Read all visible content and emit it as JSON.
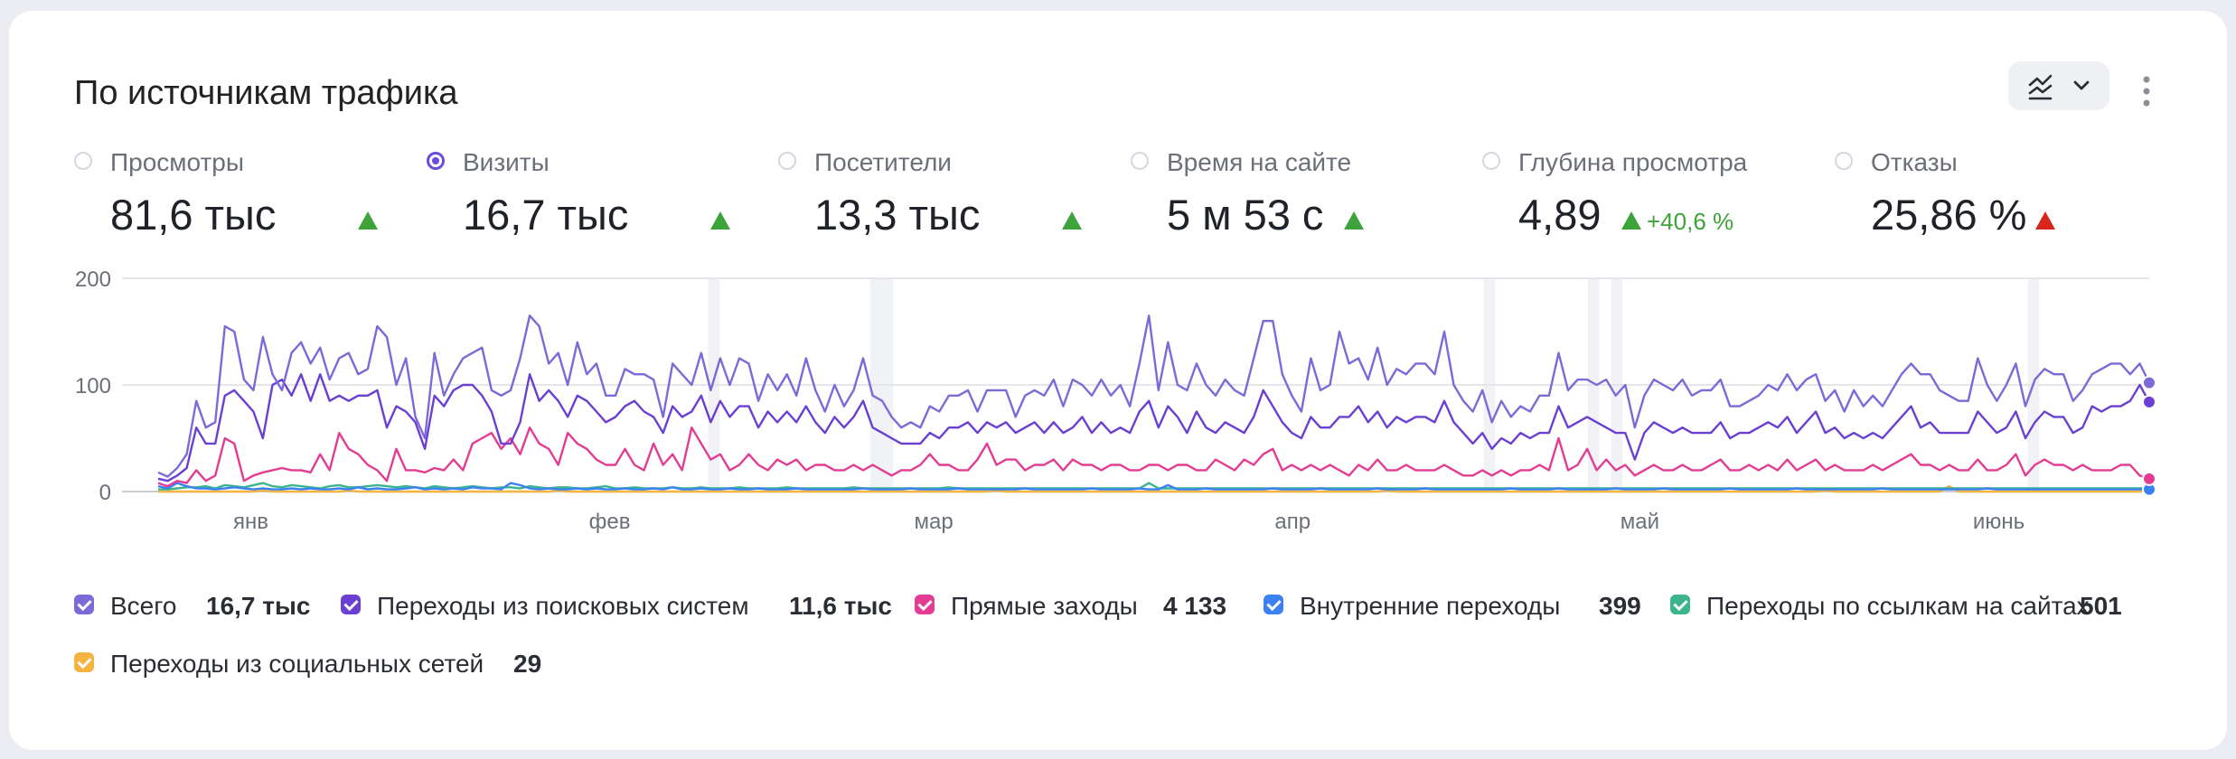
{
  "widget": {
    "title": "По источникам трафика"
  },
  "metrics": [
    {
      "label": "Просмотры",
      "value": "81,6 тыс",
      "selected": false,
      "trend": "up"
    },
    {
      "label": "Визиты",
      "value": "16,7 тыс",
      "selected": true,
      "trend": "up"
    },
    {
      "label": "Посетители",
      "value": "13,3 тыс",
      "selected": false,
      "trend": "up"
    },
    {
      "label": "Время на сайте",
      "value": "5 м 53 с",
      "selected": false,
      "trend": "up"
    },
    {
      "label": "Глубина просмотра",
      "value": "4,89",
      "selected": false,
      "trend": "up",
      "delta": "+40,6 %"
    },
    {
      "label": "Отказы",
      "value": "25,86 %",
      "selected": false,
      "trend": "up-bad"
    }
  ],
  "colors": {
    "total": "#7b6ad8",
    "search": "#6a3fd2",
    "direct": "#e23d93",
    "internal": "#3b82f0",
    "links": "#3cb58c",
    "social": "#f5b441",
    "trend_up": "#3ea33a",
    "trend_bad": "#d9261c"
  },
  "icons": {
    "view_selector": "chart-lines-icon",
    "dropdown": "chevron-down-icon",
    "more": "more-vertical-icon"
  },
  "chart_data": {
    "type": "line",
    "x_start": "2024-12-28",
    "x_end": "2025-06-18",
    "xticks": [
      {
        "date": "2025-01-05",
        "label": "янв"
      },
      {
        "date": "2025-02-05",
        "label": "фев"
      },
      {
        "date": "2025-03-05",
        "label": "мар"
      },
      {
        "date": "2025-04-05",
        "label": "апр"
      },
      {
        "date": "2025-05-05",
        "label": "май"
      },
      {
        "date": "2025-06-05",
        "label": "июнь"
      }
    ],
    "yticks": [
      "0",
      "100",
      "200"
    ],
    "ylim": [
      0,
      200
    ],
    "grid": true,
    "highlight_dates": [
      "2025-02-14",
      "2025-02-28",
      "2025-03-01",
      "2025-04-22",
      "2025-05-01",
      "2025-05-03",
      "2025-06-08"
    ],
    "series": [
      {
        "name": "Всего",
        "key": "total",
        "total": "16,7 тыс",
        "values": [
          18,
          14,
          22,
          35,
          85,
          60,
          65,
          155,
          150,
          105,
          95,
          145,
          110,
          95,
          130,
          140,
          120,
          135,
          105,
          125,
          130,
          110,
          115,
          155,
          145,
          100,
          125,
          70,
          50,
          130,
          90,
          110,
          125,
          130,
          135,
          95,
          90,
          95,
          125,
          165,
          155,
          120,
          130,
          100,
          140,
          110,
          120,
          90,
          90,
          115,
          110,
          110,
          105,
          70,
          120,
          110,
          100,
          130,
          95,
          125,
          100,
          125,
          120,
          85,
          110,
          95,
          110,
          90,
          125,
          95,
          75,
          100,
          80,
          95,
          125,
          90,
          85,
          70,
          60,
          65,
          60,
          80,
          75,
          90,
          90,
          95,
          75,
          95,
          95,
          95,
          70,
          90,
          95,
          90,
          105,
          80,
          105,
          100,
          90,
          105,
          90,
          100,
          80,
          120,
          165,
          95,
          140,
          100,
          95,
          120,
          100,
          90,
          105,
          95,
          90,
          125,
          160,
          160,
          110,
          90,
          75,
          125,
          95,
          100,
          150,
          120,
          125,
          105,
          135,
          100,
          115,
          110,
          120,
          120,
          110,
          150,
          100,
          85,
          75,
          95,
          65,
          85,
          70,
          80,
          75,
          90,
          90,
          130,
          95,
          105,
          105,
          100,
          105,
          90,
          100,
          60,
          90,
          105,
          100,
          95,
          105,
          90,
          95,
          95,
          105,
          80,
          80,
          85,
          90,
          100,
          95,
          110,
          95,
          105,
          110,
          85,
          95,
          75,
          95,
          80,
          90,
          80,
          95,
          110,
          120,
          110,
          110,
          95,
          90,
          85,
          85,
          125,
          100,
          85,
          100,
          120,
          80,
          105,
          115,
          110,
          110,
          85,
          95,
          110,
          115,
          120,
          120,
          110,
          120,
          102
        ]
      },
      {
        "name": "Переходы из поисковых систем",
        "key": "search",
        "total": "11,6 тыс",
        "values": [
          12,
          10,
          15,
          22,
          60,
          45,
          45,
          90,
          95,
          85,
          75,
          50,
          100,
          105,
          90,
          110,
          85,
          110,
          85,
          90,
          85,
          90,
          90,
          95,
          60,
          80,
          75,
          65,
          40,
          90,
          80,
          95,
          100,
          100,
          90,
          75,
          45,
          45,
          65,
          110,
          85,
          95,
          85,
          70,
          90,
          85,
          75,
          65,
          70,
          80,
          85,
          75,
          70,
          55,
          80,
          70,
          75,
          90,
          65,
          85,
          70,
          80,
          80,
          60,
          75,
          65,
          75,
          65,
          80,
          65,
          55,
          70,
          60,
          70,
          85,
          60,
          55,
          50,
          45,
          45,
          45,
          55,
          50,
          60,
          60,
          65,
          55,
          65,
          60,
          65,
          55,
          60,
          65,
          55,
          65,
          55,
          60,
          70,
          55,
          65,
          55,
          60,
          55,
          75,
          85,
          60,
          80,
          70,
          55,
          75,
          60,
          55,
          65,
          60,
          55,
          70,
          95,
          80,
          65,
          55,
          50,
          70,
          60,
          60,
          70,
          70,
          80,
          65,
          75,
          60,
          70,
          65,
          70,
          70,
          65,
          85,
          65,
          55,
          45,
          55,
          40,
          50,
          45,
          55,
          50,
          55,
          55,
          80,
          60,
          65,
          70,
          65,
          60,
          55,
          55,
          30,
          55,
          65,
          60,
          55,
          60,
          55,
          55,
          55,
          65,
          50,
          55,
          55,
          60,
          65,
          60,
          70,
          55,
          65,
          75,
          55,
          60,
          50,
          55,
          50,
          55,
          50,
          60,
          70,
          80,
          60,
          65,
          55,
          55,
          55,
          55,
          75,
          65,
          55,
          60,
          75,
          50,
          65,
          75,
          70,
          70,
          55,
          60,
          80,
          75,
          80,
          80,
          85,
          100,
          84
        ]
      },
      {
        "name": "Прямые заходы",
        "key": "direct",
        "total": "4 133",
        "values": [
          8,
          5,
          10,
          8,
          20,
          10,
          15,
          50,
          45,
          10,
          15,
          18,
          20,
          22,
          20,
          20,
          18,
          35,
          20,
          55,
          40,
          35,
          25,
          20,
          10,
          40,
          20,
          20,
          18,
          22,
          20,
          30,
          20,
          45,
          50,
          55,
          40,
          50,
          35,
          60,
          45,
          40,
          25,
          55,
          45,
          40,
          30,
          25,
          25,
          40,
          25,
          20,
          45,
          25,
          35,
          20,
          60,
          45,
          30,
          35,
          20,
          25,
          35,
          25,
          20,
          30,
          25,
          30,
          20,
          25,
          25,
          20,
          20,
          25,
          20,
          25,
          20,
          15,
          20,
          20,
          25,
          35,
          25,
          25,
          20,
          20,
          30,
          45,
          25,
          30,
          30,
          20,
          25,
          25,
          30,
          20,
          30,
          25,
          25,
          20,
          25,
          25,
          20,
          20,
          25,
          25,
          20,
          25,
          25,
          20,
          20,
          30,
          25,
          20,
          30,
          25,
          35,
          40,
          20,
          25,
          20,
          25,
          20,
          25,
          20,
          15,
          25,
          20,
          30,
          20,
          20,
          25,
          20,
          20,
          20,
          25,
          20,
          15,
          15,
          20,
          15,
          20,
          15,
          20,
          20,
          25,
          20,
          50,
          20,
          25,
          40,
          20,
          30,
          20,
          25,
          15,
          20,
          25,
          20,
          20,
          25,
          20,
          20,
          25,
          30,
          20,
          20,
          25,
          20,
          25,
          20,
          30,
          20,
          25,
          30,
          20,
          25,
          20,
          20,
          20,
          25,
          20,
          25,
          30,
          35,
          25,
          25,
          20,
          25,
          20,
          20,
          30,
          20,
          20,
          25,
          35,
          15,
          25,
          30,
          25,
          25,
          20,
          25,
          20,
          20,
          20,
          25,
          25,
          15,
          12
        ]
      },
      {
        "name": "Внутренние переходы",
        "key": "internal",
        "total": "399",
        "values": [
          5,
          3,
          8,
          5,
          3,
          3,
          2,
          3,
          4,
          3,
          2,
          3,
          2,
          2,
          3,
          2,
          3,
          2,
          2,
          3,
          2,
          4,
          2,
          3,
          2,
          2,
          3,
          4,
          2,
          3,
          2,
          3,
          2,
          4,
          3,
          3,
          2,
          8,
          6,
          3,
          2,
          3,
          2,
          2,
          3,
          2,
          3,
          2,
          2,
          3,
          2,
          2,
          3,
          2,
          4,
          2,
          2,
          3,
          2,
          2,
          3,
          2,
          2,
          3,
          2,
          2,
          2,
          3,
          2,
          2,
          2,
          2,
          2,
          2,
          3,
          2,
          2,
          2,
          2,
          3,
          2,
          2,
          2,
          2,
          3,
          2,
          2,
          2,
          2,
          2,
          2,
          3,
          2,
          2,
          2,
          2,
          2,
          2,
          3,
          2,
          2,
          2,
          2,
          3,
          2,
          2,
          6,
          2,
          2,
          2,
          3,
          2,
          2,
          2,
          2,
          2,
          2,
          3,
          2,
          2,
          2,
          2,
          3,
          2,
          2,
          2,
          2,
          2,
          3,
          2,
          2,
          2,
          2,
          3,
          2,
          2,
          2,
          2,
          2,
          2,
          2,
          2,
          3,
          2,
          2,
          2,
          2,
          3,
          2,
          2,
          2,
          2,
          2,
          3,
          2,
          2,
          2,
          2,
          3,
          2,
          2,
          2,
          2,
          2,
          2,
          3,
          2,
          2,
          2,
          2,
          2,
          2,
          3,
          2,
          2,
          2,
          2,
          2,
          2,
          2,
          2,
          3,
          2,
          2,
          2,
          2,
          2,
          2,
          2,
          2,
          2,
          2,
          3,
          2,
          2,
          2,
          2,
          2,
          2,
          2,
          2,
          2,
          2,
          2,
          2,
          2,
          2,
          2,
          2,
          2
        ]
      },
      {
        "name": "Переходы по ссылкам на сайтах",
        "key": "links",
        "total": "501",
        "values": [
          2,
          2,
          3,
          4,
          4,
          5,
          3,
          6,
          5,
          4,
          6,
          8,
          5,
          4,
          6,
          5,
          4,
          3,
          5,
          6,
          4,
          4,
          5,
          6,
          5,
          4,
          5,
          4,
          3,
          5,
          4,
          3,
          4,
          5,
          4,
          3,
          4,
          4,
          3,
          5,
          4,
          3,
          4,
          4,
          3,
          3,
          4,
          5,
          3,
          3,
          4,
          3,
          3,
          3,
          4,
          3,
          3,
          4,
          3,
          3,
          3,
          4,
          3,
          3,
          3,
          3,
          4,
          3,
          3,
          3,
          3,
          3,
          3,
          4,
          3,
          3,
          3,
          3,
          3,
          3,
          3,
          3,
          3,
          4,
          3,
          3,
          3,
          3,
          3,
          3,
          3,
          3,
          3,
          3,
          3,
          3,
          3,
          3,
          3,
          3,
          3,
          3,
          3,
          3,
          8,
          3,
          3,
          3,
          3,
          3,
          3,
          3,
          3,
          3,
          3,
          3,
          3,
          3,
          3,
          3,
          3,
          3,
          3,
          3,
          3,
          3,
          3,
          3,
          3,
          3,
          3,
          3,
          3,
          3,
          3,
          3,
          3,
          3,
          3,
          3,
          3,
          3,
          3,
          3,
          3,
          3,
          3,
          3,
          3,
          3,
          3,
          3,
          3,
          3,
          3,
          3,
          3,
          3,
          3,
          3,
          3,
          3,
          3,
          3,
          3,
          3,
          3,
          3,
          3,
          3,
          3,
          3,
          3,
          3,
          3,
          3,
          3,
          3,
          3,
          3,
          3,
          3,
          3,
          3,
          3,
          3,
          3,
          3,
          3,
          3,
          3,
          3,
          3,
          3,
          3,
          3,
          3,
          3,
          3,
          3,
          3,
          3,
          3,
          3,
          3,
          3,
          3,
          3,
          3,
          4
        ]
      },
      {
        "name": "Переходы из социальных сетей",
        "key": "social",
        "total": "29",
        "values": [
          0,
          0,
          0,
          0,
          0,
          0,
          0,
          0,
          0,
          0,
          0,
          1,
          0,
          0,
          0,
          0,
          0,
          0,
          0,
          0,
          1,
          0,
          0,
          0,
          0,
          0,
          0,
          0,
          0,
          0,
          0,
          0,
          0,
          0,
          0,
          0,
          0,
          0,
          0,
          0,
          0,
          0,
          1,
          0,
          0,
          0,
          0,
          0,
          0,
          0,
          0,
          0,
          0,
          0,
          0,
          0,
          0,
          0,
          0,
          0,
          0,
          0,
          0,
          0,
          0,
          0,
          0,
          0,
          0,
          0,
          0,
          0,
          0,
          0,
          0,
          0,
          0,
          0,
          0,
          0,
          0,
          0,
          0,
          0,
          0,
          0,
          0,
          0,
          1,
          0,
          0,
          0,
          0,
          0,
          0,
          0,
          0,
          0,
          0,
          0,
          0,
          0,
          0,
          0,
          0,
          0,
          0,
          0,
          0,
          0,
          0,
          0,
          0,
          0,
          0,
          0,
          0,
          0,
          0,
          0,
          0,
          0,
          0,
          0,
          0,
          0,
          0,
          0,
          0,
          1,
          0,
          0,
          0,
          0,
          0,
          0,
          0,
          0,
          0,
          0,
          0,
          0,
          0,
          0,
          0,
          0,
          0,
          0,
          0,
          0,
          0,
          0,
          0,
          0,
          0,
          0,
          0,
          0,
          0,
          0,
          0,
          0,
          0,
          0,
          0,
          0,
          0,
          0,
          0,
          0,
          0,
          0,
          0,
          0,
          0,
          1,
          0,
          0,
          0,
          0,
          0,
          0,
          0,
          0,
          0,
          0,
          0,
          0,
          5,
          0,
          0,
          0,
          0,
          0,
          0,
          0,
          0,
          0,
          0,
          0,
          0,
          0,
          0,
          0,
          0,
          0,
          0,
          0,
          0,
          1
        ]
      }
    ]
  }
}
